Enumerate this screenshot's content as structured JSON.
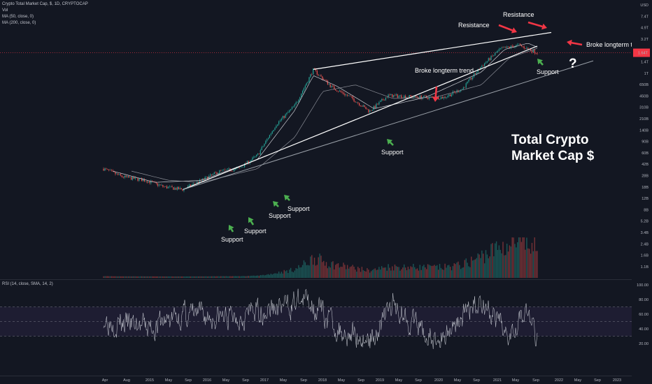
{
  "header": {
    "title": "Crypto Total Market Cap, $, 1D, CRYPTOCAP",
    "indicators": [
      "Vol",
      "MA (50, close, 0)",
      "MA (200, close, 0)"
    ],
    "rsi_label": "RSI (14, close, SMA, 14, 2)"
  },
  "chart_data": [
    {
      "type": "candlestick",
      "title": "Crypto Total Market Cap, $, 1D, CRYPTOCAP",
      "yscale": "log",
      "y_unit": "USD",
      "y_ticks": [
        "USD",
        "7.4T",
        "4.9T",
        "3.2T",
        "2.2T",
        "1.4T",
        "1T",
        "650B",
        "450B",
        "310B",
        "210B",
        "140B",
        "90B",
        "60B",
        "42B",
        "28B",
        "18B",
        "12B",
        "8B",
        "5.2B",
        "3.4B",
        "2.4B",
        "1.6B",
        "1.1B"
      ],
      "current_price_label": "1.64T",
      "x_ticks": [
        "Apr",
        "Aug",
        "2015",
        "May",
        "Sep",
        "2016",
        "May",
        "Sep",
        "2017",
        "May",
        "Sep",
        "2018",
        "May",
        "Sep",
        "2019",
        "May",
        "Sep",
        "2020",
        "May",
        "Sep",
        "2021",
        "May",
        "Sep",
        "2022",
        "May",
        "Sep",
        "2023"
      ],
      "series": [
        {
          "name": "Price",
          "x": [
            "2014-04",
            "2014-08",
            "2015-01",
            "2015-05",
            "2015-09",
            "2016-01",
            "2016-05",
            "2016-09",
            "2017-01",
            "2017-05",
            "2017-09",
            "2018-01",
            "2018-05",
            "2018-09",
            "2019-01",
            "2019-05",
            "2019-09",
            "2020-01",
            "2020-05",
            "2020-09",
            "2021-01",
            "2021-05",
            "2021-09",
            "2022-01"
          ],
          "y": [
            10,
            7,
            6,
            4.5,
            4,
            6,
            9,
            10,
            18,
            70,
            160,
            780,
            360,
            230,
            125,
            250,
            240,
            230,
            230,
            340,
            900,
            1900,
            2300,
            1640
          ]
        },
        {
          "name": "MA (50, close, 0)",
          "x": [
            "2014-06",
            "2015-03",
            "2016-01",
            "2017-01",
            "2017-09",
            "2018-01",
            "2018-06",
            "2019-02",
            "2020-01",
            "2021-01",
            "2021-06",
            "2021-11",
            "2022-01"
          ],
          "y": [
            9,
            5.5,
            6,
            15,
            130,
            600,
            380,
            140,
            230,
            700,
            1900,
            2500,
            2100
          ]
        },
        {
          "name": "MA (200, close, 0)",
          "x": [
            "2014-10",
            "2015-06",
            "2016-01",
            "2017-01",
            "2017-09",
            "2018-03",
            "2018-10",
            "2019-06",
            "2020-03",
            "2021-01",
            "2021-07",
            "2022-01"
          ],
          "y": [
            9,
            6,
            5.5,
            10,
            40,
            300,
            400,
            220,
            230,
            400,
            1300,
            2000
          ]
        }
      ],
      "volume": {
        "peak_month": "2021-05",
        "unit": "USD"
      },
      "annotations": {
        "trendlines": [
          {
            "name": "Upper resistance",
            "from": [
              "2018-01",
              790
            ],
            "to": [
              "2022-04",
              4000
            ]
          },
          {
            "name": "Rising support",
            "from": [
              "2015-09",
              4
            ],
            "to": [
              "2022-01",
              2200
            ]
          },
          {
            "name": "Long-term support",
            "from": [
              "2015-09",
              4
            ],
            "to": [
              "2023-01",
              1150
            ]
          }
        ],
        "labels": [
          "Resistance",
          "Resistance",
          "Broke longterm trend",
          "Broke longterm trend",
          "Support",
          "Support",
          "Support",
          "Support",
          "Support",
          "Support",
          "?",
          "Total Crypto",
          "Market Cap $"
        ]
      }
    },
    {
      "type": "line",
      "title": "RSI (14, close, SMA, 14, 2)",
      "ylim": [
        0,
        100
      ],
      "y_ticks": [
        "100.00",
        "80.00",
        "60.00",
        "40.00",
        "20.00"
      ],
      "band": [
        30,
        70
      ],
      "series": [
        {
          "name": "RSI",
          "x": [
            "2014-04",
            "2015-01",
            "2015-09",
            "2016-06",
            "2017-01",
            "2017-06",
            "2017-12",
            "2018-06",
            "2019-01",
            "2019-06",
            "2020-03",
            "2020-09",
            "2021-01",
            "2021-06",
            "2021-10",
            "2022-01"
          ],
          "y": [
            55,
            40,
            60,
            55,
            65,
            70,
            80,
            40,
            25,
            75,
            20,
            60,
            80,
            30,
            70,
            25
          ]
        }
      ]
    }
  ]
}
